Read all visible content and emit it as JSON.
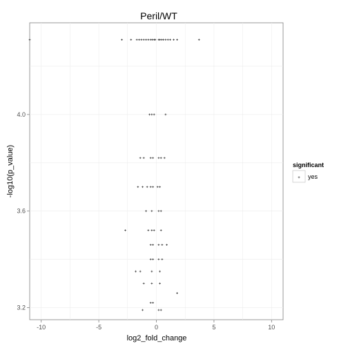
{
  "chart_data": {
    "type": "scatter",
    "title": "Peril/WT",
    "xlabel": "log2_fold_change",
    "ylabel": "-log10(p_value)",
    "xlim": [
      -11,
      11
    ],
    "ylim": [
      3.15,
      4.38
    ],
    "xticks": [
      -10,
      -5,
      0,
      5,
      10
    ],
    "yticks": [
      3.2,
      3.6,
      4.0
    ],
    "xtick_labels": [
      "-10",
      "-5",
      "0",
      "5",
      "10"
    ],
    "ytick_labels": [
      "3.2",
      "3.6",
      "4.0"
    ],
    "grid": true,
    "legend": {
      "title": "significant",
      "position": "right",
      "entries": [
        {
          "label": "yes",
          "glyph": "+"
        }
      ]
    },
    "point_glyph": "+",
    "points": [
      {
        "x": -11.0,
        "y": 4.31
      },
      {
        "x": -3.0,
        "y": 4.31
      },
      {
        "x": -2.2,
        "y": 4.31
      },
      {
        "x": -1.7,
        "y": 4.31
      },
      {
        "x": -1.5,
        "y": 4.31
      },
      {
        "x": -1.3,
        "y": 4.31
      },
      {
        "x": -1.1,
        "y": 4.31
      },
      {
        "x": -0.9,
        "y": 4.31
      },
      {
        "x": -0.7,
        "y": 4.31
      },
      {
        "x": -0.5,
        "y": 4.31
      },
      {
        "x": -0.35,
        "y": 4.31
      },
      {
        "x": -0.2,
        "y": 4.31
      },
      {
        "x": -0.1,
        "y": 4.31
      },
      {
        "x": 0.2,
        "y": 4.31
      },
      {
        "x": 0.3,
        "y": 4.31
      },
      {
        "x": 0.45,
        "y": 4.31
      },
      {
        "x": 0.6,
        "y": 4.31
      },
      {
        "x": 0.8,
        "y": 4.31
      },
      {
        "x": 1.0,
        "y": 4.31
      },
      {
        "x": 1.2,
        "y": 4.31
      },
      {
        "x": 1.5,
        "y": 4.31
      },
      {
        "x": 1.8,
        "y": 4.31
      },
      {
        "x": 3.7,
        "y": 4.31
      },
      {
        "x": -0.6,
        "y": 4.0
      },
      {
        "x": -0.4,
        "y": 4.0
      },
      {
        "x": -0.2,
        "y": 4.0
      },
      {
        "x": 0.8,
        "y": 4.0
      },
      {
        "x": -1.4,
        "y": 3.82
      },
      {
        "x": -1.1,
        "y": 3.82
      },
      {
        "x": -0.5,
        "y": 3.82
      },
      {
        "x": -0.3,
        "y": 3.82
      },
      {
        "x": 0.2,
        "y": 3.82
      },
      {
        "x": 0.4,
        "y": 3.82
      },
      {
        "x": 0.7,
        "y": 3.82
      },
      {
        "x": -1.6,
        "y": 3.7
      },
      {
        "x": -1.2,
        "y": 3.7
      },
      {
        "x": -0.8,
        "y": 3.7
      },
      {
        "x": -0.5,
        "y": 3.7
      },
      {
        "x": -0.3,
        "y": 3.7
      },
      {
        "x": 0.1,
        "y": 3.7
      },
      {
        "x": 0.3,
        "y": 3.7
      },
      {
        "x": -0.9,
        "y": 3.6
      },
      {
        "x": -0.4,
        "y": 3.6
      },
      {
        "x": 0.2,
        "y": 3.6
      },
      {
        "x": 0.4,
        "y": 3.6
      },
      {
        "x": -2.7,
        "y": 3.52
      },
      {
        "x": -0.7,
        "y": 3.52
      },
      {
        "x": -0.4,
        "y": 3.52
      },
      {
        "x": -0.2,
        "y": 3.52
      },
      {
        "x": 0.4,
        "y": 3.52
      },
      {
        "x": -0.5,
        "y": 3.46
      },
      {
        "x": -0.3,
        "y": 3.46
      },
      {
        "x": 0.2,
        "y": 3.46
      },
      {
        "x": 0.5,
        "y": 3.46
      },
      {
        "x": 0.9,
        "y": 3.46
      },
      {
        "x": -0.5,
        "y": 3.4
      },
      {
        "x": -0.3,
        "y": 3.4
      },
      {
        "x": 0.2,
        "y": 3.4
      },
      {
        "x": 0.5,
        "y": 3.4
      },
      {
        "x": -1.8,
        "y": 3.35
      },
      {
        "x": -1.4,
        "y": 3.35
      },
      {
        "x": -0.4,
        "y": 3.35
      },
      {
        "x": 0.3,
        "y": 3.35
      },
      {
        "x": -1.1,
        "y": 3.3
      },
      {
        "x": -0.4,
        "y": 3.3
      },
      {
        "x": 0.3,
        "y": 3.3
      },
      {
        "x": 1.8,
        "y": 3.26
      },
      {
        "x": -0.5,
        "y": 3.22
      },
      {
        "x": -0.3,
        "y": 3.22
      },
      {
        "x": -1.2,
        "y": 3.19
      },
      {
        "x": 0.2,
        "y": 3.19
      },
      {
        "x": 0.4,
        "y": 3.19
      }
    ]
  }
}
